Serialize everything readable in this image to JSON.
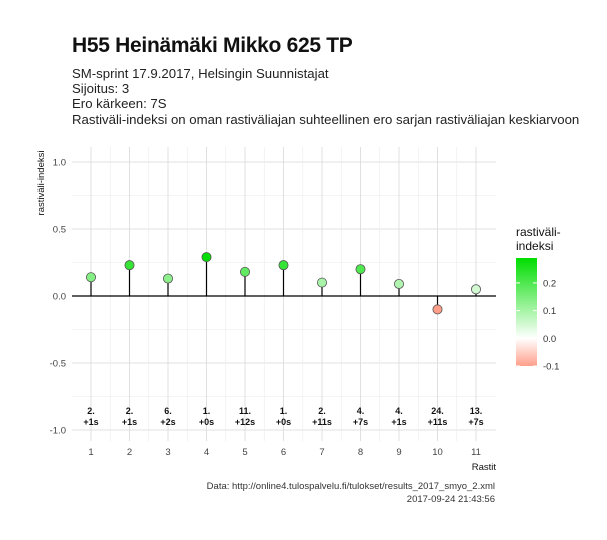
{
  "header": {
    "title": "H55 Heinämäki Mikko 625 TP",
    "subtitle_1": "SM-sprint 17.9.2017, Helsingin Suunnistajat",
    "subtitle_2": "Sijoitus: 3",
    "subtitle_3": "Ero kärkeen: 7S",
    "subtitle_4": "Rastiväli-indeksi on oman rastiväliajan suhteellinen ero sarjan rastiväliajan keskiarvoon"
  },
  "caption": {
    "source": "Data: http://online4.tulospalvelu.fi/tulokset/results_2017_smyo_2.xml",
    "timestamp": "2017-09-24 21:43:56"
  },
  "chart_data": {
    "type": "scatter",
    "style": "lollipop",
    "x": [
      1,
      2,
      3,
      4,
      5,
      6,
      7,
      8,
      9,
      10,
      11
    ],
    "values": [
      0.14,
      0.23,
      0.13,
      0.29,
      0.18,
      0.23,
      0.1,
      0.2,
      0.09,
      -0.1,
      0.05
    ],
    "annotations": [
      [
        "2.",
        "+1s"
      ],
      [
        "2.",
        "+1s"
      ],
      [
        "6.",
        "+2s"
      ],
      [
        "1.",
        "+0s"
      ],
      [
        "11.",
        "+12s"
      ],
      [
        "1.",
        "+0s"
      ],
      [
        "2.",
        "+11s"
      ],
      [
        "4.",
        "+7s"
      ],
      [
        "4.",
        "+1s"
      ],
      [
        "24.",
        "+11s"
      ],
      [
        "13.",
        "+7s"
      ]
    ],
    "xlabel": "Rastit",
    "ylabel": "rastiväli-indeksi",
    "xticks": [
      "1",
      "2",
      "3",
      "4",
      "5",
      "6",
      "7",
      "8",
      "9",
      "10",
      "11"
    ],
    "yticks": [
      "-1.0",
      "-0.5",
      "0.0",
      "0.5",
      "1.0"
    ],
    "ylim": [
      -1.0,
      1.0
    ],
    "grid": true,
    "legend": {
      "title": "rastiväli-\nindeksi",
      "placement": "right",
      "ticks": [
        "0.2",
        "0.1",
        "0.0",
        "-0.1"
      ],
      "range": [
        -0.1,
        0.29
      ]
    },
    "colors": {
      "high": "#00dd00",
      "mid": "#ffffff",
      "low": "#ff9f8a",
      "stem": "#000000"
    }
  }
}
